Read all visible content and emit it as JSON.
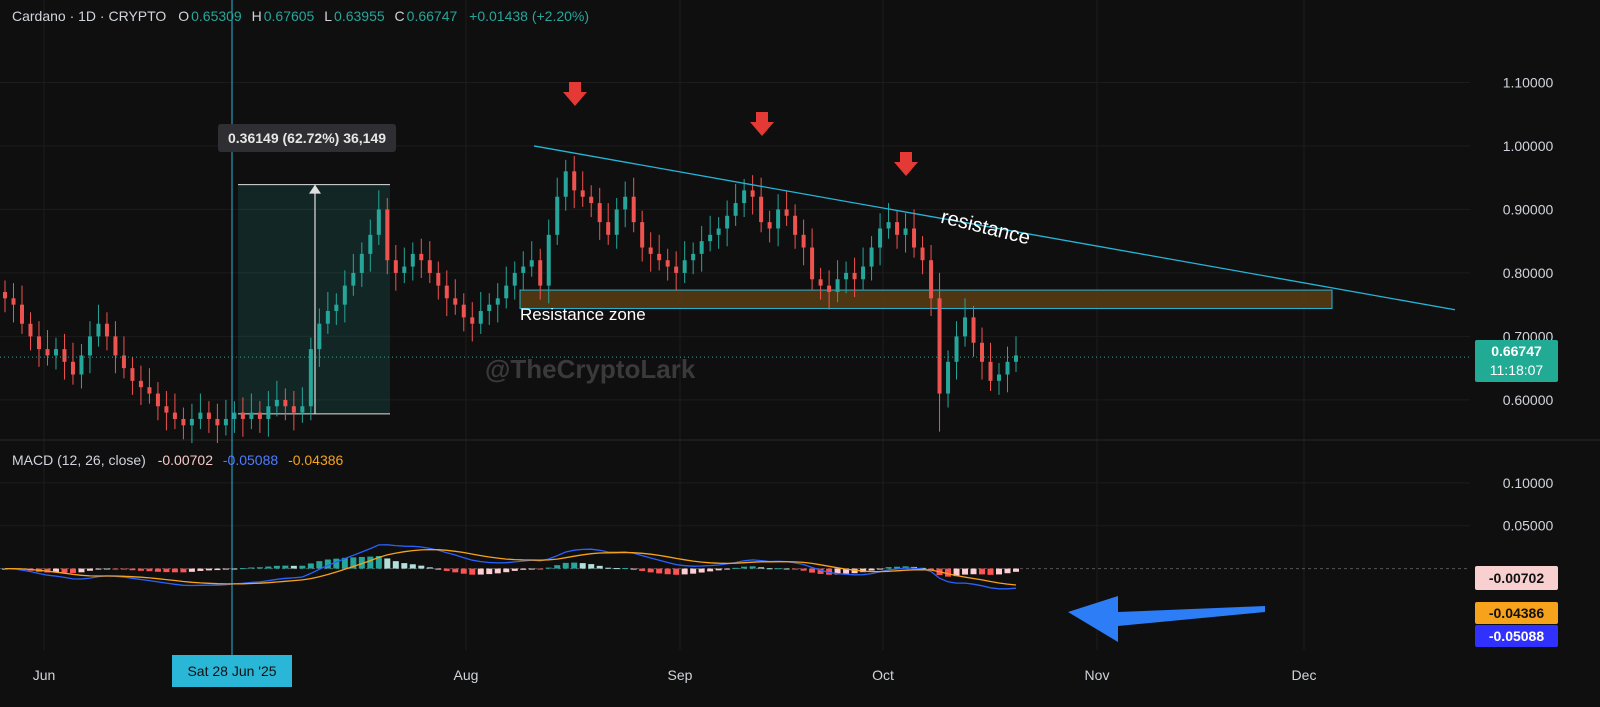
{
  "header": {
    "symbol": "Cardano · 1D · CRYPTO",
    "o_label": "O",
    "o_value": "0.65309",
    "h_label": "H",
    "h_value": "0.67605",
    "l_label": "L",
    "l_value": "0.63955",
    "c_label": "C",
    "c_value": "0.66747",
    "change": "+0.01438 (+2.20%)"
  },
  "macd_header": {
    "label": "MACD (12, 26, close)",
    "hist": "-0.00702",
    "macd": "-0.05088",
    "signal": "-0.04386"
  },
  "annotations": {
    "resistance_line": "resistance",
    "zone": "Resistance zone",
    "measure": "0.36149 (62.72%) 36,149",
    "watermark": "@TheCryptoLark"
  },
  "price_tags": {
    "last": "0.66747",
    "countdown": "11:18:07",
    "hist": "-0.00702",
    "signal": "-0.04386",
    "macd": "-0.05088"
  },
  "crosshair_date": "Sat 28 Jun '25",
  "colors": {
    "up": "#26a69a",
    "down": "#ef5350",
    "trendline": "#26b5d8",
    "macd_line": "#2962ff",
    "signal_line": "#f7a21b",
    "zone": "#5a3d14",
    "arrow": "#e53935",
    "blue_arrow": "#2d7df6"
  },
  "chart_data": [
    {
      "type": "candlestick",
      "title": "Cardano · 1D · CRYPTO",
      "x_ticks": [
        "Jun",
        "Aug",
        "Sep",
        "Oct",
        "Nov",
        "Dec"
      ],
      "y_ticks": [
        "0.60000",
        "0.70000",
        "0.80000",
        "0.90000",
        "1.00000",
        "1.10000"
      ],
      "ylim": [
        0.54,
        1.17
      ],
      "grid": true,
      "close_series": [
        0.76,
        0.75,
        0.72,
        0.7,
        0.68,
        0.67,
        0.68,
        0.66,
        0.64,
        0.67,
        0.7,
        0.72,
        0.7,
        0.67,
        0.65,
        0.63,
        0.62,
        0.61,
        0.59,
        0.58,
        0.57,
        0.56,
        0.57,
        0.58,
        0.57,
        0.56,
        0.57,
        0.58,
        0.57,
        0.58,
        0.57,
        0.59,
        0.6,
        0.59,
        0.58,
        0.59,
        0.68,
        0.72,
        0.74,
        0.75,
        0.78,
        0.8,
        0.83,
        0.86,
        0.9,
        0.82,
        0.8,
        0.81,
        0.83,
        0.82,
        0.8,
        0.78,
        0.76,
        0.75,
        0.73,
        0.72,
        0.74,
        0.75,
        0.76,
        0.78,
        0.8,
        0.81,
        0.82,
        0.78,
        0.86,
        0.92,
        0.96,
        0.93,
        0.92,
        0.91,
        0.88,
        0.86,
        0.9,
        0.92,
        0.88,
        0.84,
        0.83,
        0.82,
        0.81,
        0.8,
        0.82,
        0.83,
        0.85,
        0.86,
        0.87,
        0.89,
        0.91,
        0.93,
        0.92,
        0.88,
        0.87,
        0.9,
        0.89,
        0.86,
        0.84,
        0.79,
        0.78,
        0.77,
        0.79,
        0.8,
        0.79,
        0.81,
        0.84,
        0.87,
        0.88,
        0.86,
        0.87,
        0.84,
        0.82,
        0.76,
        0.61,
        0.66,
        0.7,
        0.73,
        0.69,
        0.66,
        0.63,
        0.64,
        0.66,
        0.67
      ],
      "measure": {
        "start": 0.578,
        "end": 0.939,
        "change": "0.36149 (62.72%) 36,149"
      },
      "resistance_trendline": [
        {
          "x": "12 Aug",
          "y": 1.0
        },
        {
          "x": "end",
          "y": 0.742
        }
      ],
      "resistance_zone": [
        0.744,
        0.773
      ],
      "last_price": 0.66747
    },
    {
      "type": "macd",
      "title": "MACD (12, 26, close)",
      "y_ticks": [
        "0.05000",
        "0.10000"
      ],
      "ylim": [
        -0.095,
        0.115
      ],
      "macd": -0.05088,
      "signal": -0.04386,
      "histogram": -0.00702
    }
  ]
}
